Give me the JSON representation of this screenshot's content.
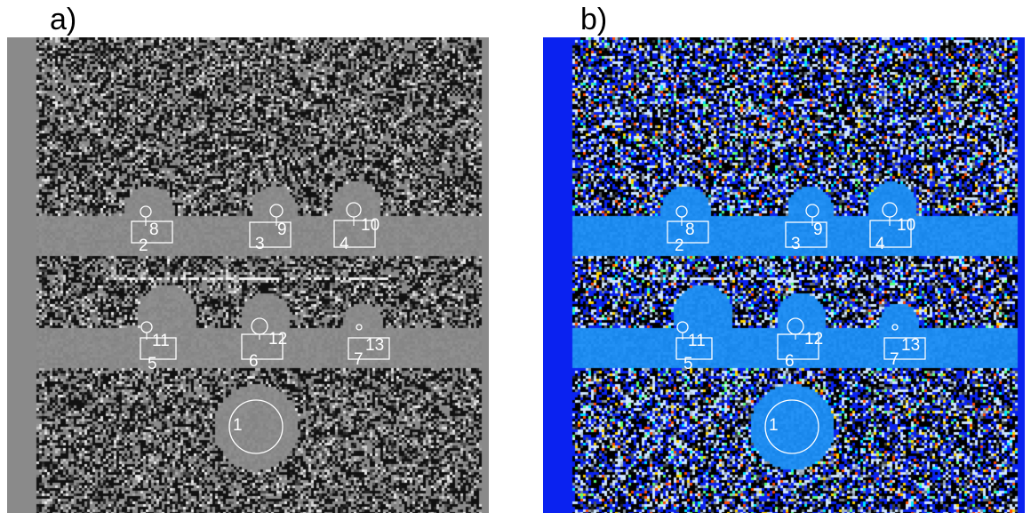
{
  "panels": [
    {
      "label": "a)",
      "colormap": "gray",
      "colors": {
        "background": "#8a8a8a",
        "bar": "#8a8a8a",
        "noise_dark": "#111111",
        "noise_light": "#f2f2f2"
      }
    },
    {
      "label": "b)",
      "colormap": "jet",
      "colors": {
        "background": "#0a22f0",
        "bar": "#1e8cf0",
        "noise_dark": "#000000",
        "noise_light": "#cfe6ff",
        "noise_accents": [
          "#00e5ff",
          "#ffd400",
          "#ff4a00",
          "#5cff7a"
        ]
      }
    }
  ],
  "rois": [
    {
      "id": "1",
      "shape": "circle"
    },
    {
      "id": "2",
      "shape": "rect"
    },
    {
      "id": "3",
      "shape": "rect"
    },
    {
      "id": "4",
      "shape": "rect"
    },
    {
      "id": "5",
      "shape": "rect"
    },
    {
      "id": "6",
      "shape": "rect"
    },
    {
      "id": "7",
      "shape": "rect"
    },
    {
      "id": "8",
      "shape": "circle"
    },
    {
      "id": "9",
      "shape": "circle"
    },
    {
      "id": "10",
      "shape": "circle"
    },
    {
      "id": "11",
      "shape": "circle"
    },
    {
      "id": "12",
      "shape": "circle"
    },
    {
      "id": "13",
      "shape": "circle"
    }
  ]
}
